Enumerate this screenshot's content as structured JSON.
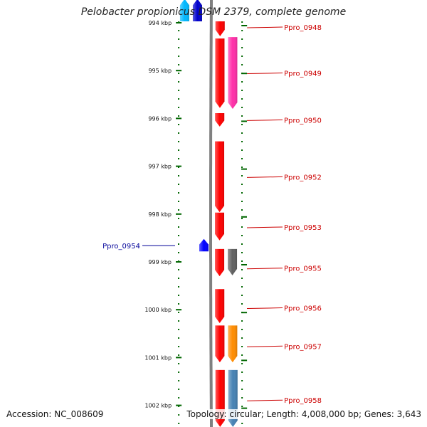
{
  "title": "Pelobacter propionicus DSM 2379, complete genome",
  "accession_text": "Accession: NC_008609",
  "footer_text": "Topology: circular; Length: 4,008,000 bp; Genes: 3,643",
  "colors": {
    "forward": "#ff0000",
    "reverse": "#0000ff",
    "label_forward": "#cc0000",
    "label_reverse": "#000099",
    "ticks": "#006600",
    "backbone": "#808080"
  },
  "ruler": {
    "unit": "kbp",
    "ticks": [
      {
        "kbp": 994,
        "label": "994 kbp"
      },
      {
        "kbp": 995,
        "label": "995 kbp"
      },
      {
        "kbp": 996,
        "label": "996 kbp"
      },
      {
        "kbp": 997,
        "label": "997 kbp"
      },
      {
        "kbp": 998,
        "label": "998 kbp"
      },
      {
        "kbp": 999,
        "label": "999 kbp"
      },
      {
        "kbp": 1000,
        "label": "1000 kbp"
      },
      {
        "kbp": 1001,
        "label": "1001 kbp"
      },
      {
        "kbp": 1002,
        "label": "1002 kbp"
      }
    ]
  },
  "genes": [
    {
      "name": "Ppro_0948",
      "strand": "+",
      "start_kbp": 993.97,
      "end_kbp": 994.28,
      "labeled": true,
      "color": "#ff0000"
    },
    {
      "name": "Ppro_0949",
      "strand": "+",
      "start_kbp": 994.33,
      "end_kbp": 995.78,
      "labeled": true,
      "color": "#ff0000"
    },
    {
      "name": "Ppro_0949 partner",
      "strand": "+",
      "lane": 2,
      "start_kbp": 994.3,
      "end_kbp": 995.8,
      "labeled": false,
      "color": "#ff2fa8"
    },
    {
      "name": "Ppro_0950",
      "strand": "+",
      "start_kbp": 995.89,
      "end_kbp": 996.17,
      "labeled": true,
      "color": "#ff0000"
    },
    {
      "name": "Ppro_0952",
      "strand": "+",
      "start_kbp": 996.48,
      "end_kbp": 997.96,
      "labeled": true,
      "color": "#ff0000"
    },
    {
      "name": "Ppro_0953",
      "strand": "+",
      "start_kbp": 997.97,
      "end_kbp": 998.55,
      "labeled": true,
      "color": "#ff0000"
    },
    {
      "name": "Ppro_0954",
      "strand": "-",
      "start_kbp": 998.52,
      "end_kbp": 998.78,
      "labeled": true,
      "color": "#0000ff"
    },
    {
      "name": "Ppro_0955",
      "strand": "+",
      "start_kbp": 998.73,
      "end_kbp": 999.3,
      "labeled": true,
      "color": "#ff0000"
    },
    {
      "name": "Ppro_0955 partner",
      "strand": "+",
      "lane": 2,
      "start_kbp": 998.73,
      "end_kbp": 999.28,
      "labeled": false,
      "color": "#606060"
    },
    {
      "name": "Ppro_0956",
      "strand": "+",
      "start_kbp": 999.57,
      "end_kbp": 1000.28,
      "labeled": true,
      "color": "#ff0000"
    },
    {
      "name": "Ppro_0957",
      "strand": "+",
      "start_kbp": 1000.33,
      "end_kbp": 1001.1,
      "labeled": true,
      "color": "#ff0000"
    },
    {
      "name": "Ppro_0957 partner",
      "strand": "+",
      "lane": 2,
      "start_kbp": 1000.33,
      "end_kbp": 1001.1,
      "labeled": false,
      "color": "#ff8c00"
    },
    {
      "name": "Ppro_0958",
      "strand": "+",
      "start_kbp": 1001.26,
      "end_kbp": 1002.45,
      "labeled": true,
      "color": "#ff0000"
    },
    {
      "name": "Ppro_0958 partner",
      "strand": "+",
      "lane": 2,
      "start_kbp": 1001.26,
      "end_kbp": 1002.45,
      "labeled": false,
      "color": "#4682b4"
    },
    {
      "name": "upstream reverse 1",
      "strand": "-",
      "lane": 2,
      "start_kbp": 993.5,
      "end_kbp": 993.97,
      "labeled": false,
      "color": "#0000cc"
    },
    {
      "name": "upstream reverse 2",
      "strand": "-",
      "lane": 3,
      "start_kbp": 993.5,
      "end_kbp": 993.97,
      "labeled": false,
      "color": "#00b8ff"
    }
  ],
  "label_y_kbp": {
    "Ppro_0948": 994.09,
    "Ppro_0949": 995.05,
    "Ppro_0950": 996.03,
    "Ppro_0952": 997.22,
    "Ppro_0953": 998.27,
    "Ppro_0954": 998.66,
    "Ppro_0955": 999.13,
    "Ppro_0956": 999.96,
    "Ppro_0957": 1000.76,
    "Ppro_0958": 1001.89
  }
}
